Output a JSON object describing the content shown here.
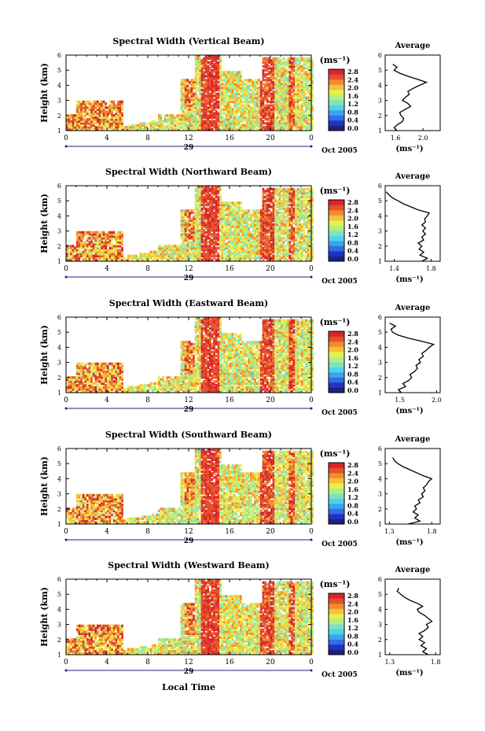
{
  "common": {
    "ylabel": "Height (km)",
    "ymin": 1,
    "ymax": 6,
    "yticks": [
      "1",
      "2",
      "3",
      "4",
      "5",
      "6"
    ],
    "xticks": [
      "0",
      "4",
      "8",
      "12",
      "16",
      "20",
      "0"
    ],
    "date_day": "29",
    "date_month": "Oct 2005",
    "xlabel": "Local Time",
    "unit": "(ms⁻¹)",
    "avg_title": "Average",
    "avg_unit": "(ms⁻¹)",
    "colors": [
      "#1a237e",
      "#2431c4",
      "#2f6fe0",
      "#3aa4f0",
      "#4fd3e8",
      "#7ce3c0",
      "#b4ee80",
      "#e8ef4f",
      "#f7c038",
      "#f08c2c",
      "#e5502a",
      "#d8252a"
    ]
  },
  "chart_data": [
    {
      "type": "heatmap",
      "title": "Spectral Width (Vertical Beam)",
      "colorbar_ticks": [
        "0.0",
        "0.4",
        "0.8",
        "1.2",
        "1.6",
        "2.0",
        "2.4",
        "2.8"
      ],
      "average": {
        "xticks": [
          "1.6",
          "2.0"
        ],
        "xrange": [
          1.45,
          2.25
        ],
        "profile": [
          [
            1.0,
            1.62
          ],
          [
            1.2,
            1.58
          ],
          [
            1.4,
            1.63
          ],
          [
            1.6,
            1.7
          ],
          [
            1.8,
            1.72
          ],
          [
            2.0,
            1.68
          ],
          [
            2.2,
            1.66
          ],
          [
            2.4,
            1.74
          ],
          [
            2.6,
            1.82
          ],
          [
            2.8,
            1.78
          ],
          [
            3.0,
            1.7
          ],
          [
            3.2,
            1.74
          ],
          [
            3.4,
            1.8
          ],
          [
            3.6,
            1.78
          ],
          [
            3.8,
            1.86
          ],
          [
            4.0,
            1.95
          ],
          [
            4.2,
            2.05
          ],
          [
            4.4,
            1.92
          ],
          [
            4.6,
            1.78
          ],
          [
            4.8,
            1.66
          ],
          [
            5.0,
            1.58
          ],
          [
            5.2,
            1.62
          ],
          [
            5.4,
            1.56
          ]
        ]
      }
    },
    {
      "type": "heatmap",
      "title": "Spectral Width (Northward Beam)",
      "colorbar_ticks": [
        "0.0",
        "0.4",
        "0.8",
        "1.2",
        "1.6",
        "2.0",
        "2.4",
        "2.8"
      ],
      "average": {
        "xticks": [
          "1.4",
          "1.8"
        ],
        "xrange": [
          1.3,
          1.9
        ],
        "profile": [
          [
            1.0,
            1.7
          ],
          [
            1.2,
            1.76
          ],
          [
            1.4,
            1.68
          ],
          [
            1.6,
            1.72
          ],
          [
            1.8,
            1.67
          ],
          [
            2.0,
            1.7
          ],
          [
            2.2,
            1.66
          ],
          [
            2.4,
            1.72
          ],
          [
            2.6,
            1.7
          ],
          [
            2.8,
            1.74
          ],
          [
            3.0,
            1.71
          ],
          [
            3.2,
            1.74
          ],
          [
            3.4,
            1.7
          ],
          [
            3.6,
            1.74
          ],
          [
            3.8,
            1.73
          ],
          [
            4.0,
            1.76
          ],
          [
            4.2,
            1.78
          ],
          [
            4.4,
            1.66
          ],
          [
            4.6,
            1.58
          ],
          [
            4.8,
            1.5
          ],
          [
            5.0,
            1.44
          ],
          [
            5.2,
            1.38
          ],
          [
            5.4,
            1.34
          ],
          [
            5.6,
            1.31
          ]
        ]
      }
    },
    {
      "type": "heatmap",
      "title": "Spectral Width (Eastward Beam)",
      "colorbar_ticks": [
        "0.0",
        "0.4",
        "0.8",
        "1.2",
        "1.6",
        "2.0",
        "2.4",
        "2.8"
      ],
      "average": {
        "xticks": [
          "1.5",
          "2.0"
        ],
        "xrange": [
          1.3,
          2.05
        ],
        "profile": [
          [
            1.0,
            1.52
          ],
          [
            1.2,
            1.48
          ],
          [
            1.4,
            1.58
          ],
          [
            1.6,
            1.54
          ],
          [
            1.8,
            1.62
          ],
          [
            2.0,
            1.66
          ],
          [
            2.2,
            1.64
          ],
          [
            2.4,
            1.7
          ],
          [
            2.6,
            1.74
          ],
          [
            2.8,
            1.72
          ],
          [
            3.0,
            1.78
          ],
          [
            3.2,
            1.76
          ],
          [
            3.4,
            1.82
          ],
          [
            3.6,
            1.8
          ],
          [
            3.8,
            1.86
          ],
          [
            4.0,
            1.9
          ],
          [
            4.2,
            1.96
          ],
          [
            4.4,
            1.8
          ],
          [
            4.6,
            1.62
          ],
          [
            4.8,
            1.48
          ],
          [
            5.0,
            1.4
          ],
          [
            5.2,
            1.38
          ],
          [
            5.4,
            1.44
          ],
          [
            5.6,
            1.36
          ]
        ]
      }
    },
    {
      "type": "heatmap",
      "title": "Spectral Width (Southward Beam)",
      "colorbar_ticks": [
        "0.0",
        "0.4",
        "0.8",
        "1.2",
        "1.6",
        "2.0",
        "2.4",
        "2.8"
      ],
      "average": {
        "xticks": [
          "1.3",
          "1.8"
        ],
        "xrange": [
          1.25,
          1.9
        ],
        "profile": [
          [
            1.0,
            1.52
          ],
          [
            1.2,
            1.66
          ],
          [
            1.4,
            1.6
          ],
          [
            1.6,
            1.64
          ],
          [
            1.8,
            1.58
          ],
          [
            2.0,
            1.62
          ],
          [
            2.2,
            1.6
          ],
          [
            2.4,
            1.66
          ],
          [
            2.6,
            1.64
          ],
          [
            2.8,
            1.7
          ],
          [
            3.0,
            1.68
          ],
          [
            3.2,
            1.72
          ],
          [
            3.4,
            1.7
          ],
          [
            3.6,
            1.74
          ],
          [
            3.8,
            1.76
          ],
          [
            4.0,
            1.8
          ],
          [
            4.2,
            1.7
          ],
          [
            4.4,
            1.62
          ],
          [
            4.6,
            1.54
          ],
          [
            4.8,
            1.46
          ],
          [
            5.0,
            1.4
          ],
          [
            5.2,
            1.36
          ],
          [
            5.4,
            1.34
          ]
        ]
      }
    },
    {
      "type": "heatmap",
      "title": "Spectral Width (Westward Beam)",
      "colorbar_ticks": [
        "0.0",
        "0.4",
        "0.8",
        "1.2",
        "1.6",
        "2.0",
        "2.4",
        "2.8"
      ],
      "average": {
        "xticks": [
          "1.3",
          "1.8"
        ],
        "xrange": [
          1.25,
          1.85
        ],
        "profile": [
          [
            1.0,
            1.72
          ],
          [
            1.2,
            1.66
          ],
          [
            1.4,
            1.7
          ],
          [
            1.6,
            1.64
          ],
          [
            1.8,
            1.68
          ],
          [
            2.0,
            1.62
          ],
          [
            2.2,
            1.66
          ],
          [
            2.4,
            1.62
          ],
          [
            2.6,
            1.68
          ],
          [
            2.8,
            1.72
          ],
          [
            3.0,
            1.7
          ],
          [
            3.2,
            1.76
          ],
          [
            3.4,
            1.72
          ],
          [
            3.6,
            1.68
          ],
          [
            3.8,
            1.62
          ],
          [
            4.0,
            1.6
          ],
          [
            4.2,
            1.66
          ],
          [
            4.4,
            1.6
          ],
          [
            4.6,
            1.52
          ],
          [
            4.8,
            1.46
          ],
          [
            5.0,
            1.42
          ],
          [
            5.2,
            1.38
          ],
          [
            5.4,
            1.4
          ]
        ]
      }
    }
  ]
}
